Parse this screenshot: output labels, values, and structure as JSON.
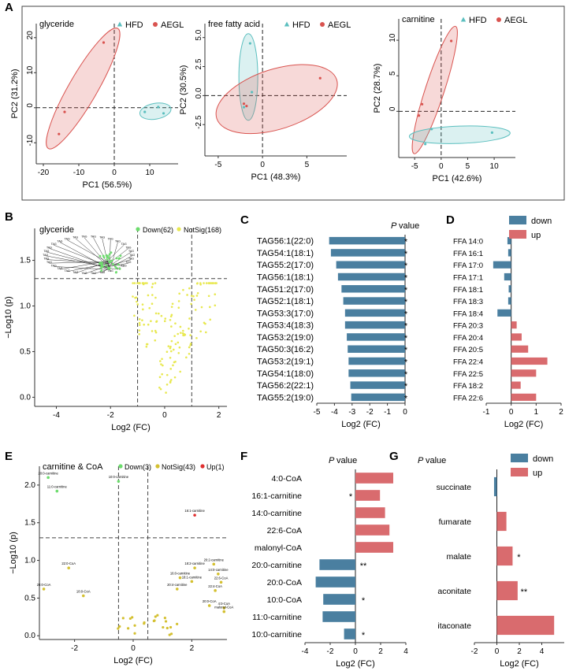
{
  "colors": {
    "hfd": "#5bbfbf",
    "aegl": "#d9534f",
    "down_green": "#6ddc6d",
    "notsig": "#e8e850",
    "bar_down": "#4a7fa0",
    "bar_up": "#d96b6e",
    "sig_red": "#e03030",
    "notsig2": "#d4c030"
  },
  "panels": {
    "A": "A",
    "B": "B",
    "C": "C",
    "D": "D",
    "E": "E",
    "F": "F",
    "G": "G"
  },
  "chart_data": [
    {
      "id": "A1",
      "type": "scatter",
      "title": "glyceride",
      "xlabel": "PC1 (56.5%)",
      "ylabel": "PC2 (31.2%)",
      "xlim": [
        -22,
        18
      ],
      "ylim": [
        -16,
        24
      ],
      "xticks": [
        -20,
        -10,
        0,
        10
      ],
      "yticks": [
        -10,
        0,
        10,
        20
      ],
      "legend": [
        "HFD",
        "AEGL"
      ],
      "series": [
        {
          "name": "HFD",
          "points": [
            [
              8.6,
              -1.2
            ],
            [
              12.4,
              0.2
            ],
            [
              13.9,
              -1.6
            ]
          ]
        },
        {
          "name": "AEGL",
          "points": [
            [
              -3,
              18.6
            ],
            [
              -14,
              -1.2
            ],
            [
              -15.6,
              -7.5
            ]
          ]
        }
      ]
    },
    {
      "id": "A2",
      "type": "scatter",
      "title": "free fatty acid",
      "xlabel": "PC1 (48.3%)",
      "ylabel": "PC2 (30.5%)",
      "xlim": [
        -6.5,
        9.5
      ],
      "ylim": [
        -5.2,
        6.2
      ],
      "xticks": [
        -5,
        0,
        5
      ],
      "yticks": [
        -2.5,
        0.0,
        2.5,
        5.0
      ],
      "legend": [
        "HFD",
        "AEGL"
      ],
      "series": [
        {
          "name": "HFD",
          "points": [
            [
              -1.4,
              4.5
            ],
            [
              -2.1,
              -1.0
            ],
            [
              -1.2,
              0.3
            ]
          ]
        },
        {
          "name": "AEGL",
          "points": [
            [
              6.5,
              1.5
            ],
            [
              -2.1,
              -0.7
            ],
            [
              -1.8,
              -0.9
            ]
          ]
        }
      ]
    },
    {
      "id": "A3",
      "type": "scatter",
      "title": "carnitine",
      "xlabel": "PC1 (42.6%)",
      "ylabel": "PC2 (28.7%)",
      "xlim": [
        -8,
        14
      ],
      "ylim": [
        -6.5,
        13
      ],
      "xticks": [
        -5,
        0,
        5,
        10
      ],
      "yticks": [
        0,
        5,
        10
      ],
      "legend": [
        "HFD",
        "AEGL"
      ],
      "series": [
        {
          "name": "HFD",
          "points": [
            [
              -1.8,
              -2.5
            ],
            [
              -3,
              -4.6
            ],
            [
              9.6,
              -3.0
            ]
          ]
        },
        {
          "name": "AEGL",
          "points": [
            [
              1.9,
              9.9
            ],
            [
              -3.6,
              1.0
            ],
            [
              -4.2,
              -0.6
            ]
          ]
        }
      ]
    },
    {
      "id": "B",
      "type": "scatter",
      "title": "glyceride",
      "xlabel": "Log2 (FC)",
      "ylabel": "−Log10 (p)",
      "xlim": [
        -4.8,
        2.3
      ],
      "ylim": [
        -0.1,
        1.85
      ],
      "xticks": [
        -4,
        -2,
        0,
        2
      ],
      "yticks": [
        0.0,
        0.5,
        1.0,
        1.5
      ],
      "legend": [
        "Down(62)",
        "NotSig(168)"
      ]
    },
    {
      "id": "C",
      "type": "bar",
      "title": "P value",
      "xlabel": "Log2 (FC)",
      "xlim": [
        -5,
        0
      ],
      "xticks": [
        -5,
        -4,
        -3,
        -2,
        -1,
        0
      ],
      "categories": [
        "TAG56:1(22:0)",
        "TAG54:1(18:1)",
        "TAG55:2(17:0)",
        "TAG56:1(18:1)",
        "TAG51:2(17:0)",
        "TAG52:1(18:1)",
        "TAG53:3(17:0)",
        "TAG53:4(18:3)",
        "TAG53:2(19:0)",
        "TAG50:3(16:2)",
        "TAG53:2(19:1)",
        "TAG54:1(18:0)",
        "TAG56:2(22:1)",
        "TAG55:2(19:0)"
      ],
      "values": [
        -4.3,
        -4.2,
        -3.9,
        -3.8,
        -3.6,
        -3.5,
        -3.4,
        -3.4,
        -3.3,
        -3.25,
        -3.2,
        -3.2,
        -3.1,
        -3.05
      ],
      "significance": [
        "*",
        "*",
        "*",
        "*",
        "*",
        "*",
        "*",
        "*",
        "*",
        "*",
        "*",
        "*",
        "*",
        "*"
      ]
    },
    {
      "id": "D",
      "type": "bar",
      "xlabel": "Log2 (FC)",
      "xlim": [
        -1.0,
        2.0
      ],
      "xticks": [
        -1.0,
        0.0,
        1.0,
        2.0
      ],
      "legend": [
        "down",
        "up"
      ],
      "categories": [
        "FFA 14:0",
        "FFA 16:1",
        "FFA 17:0",
        "FFA 17:1",
        "FFA 18:1",
        "FFA 18:3",
        "FFA 18:4",
        "FFA 20:3",
        "FFA 20:4",
        "FFA 20:5",
        "FFA 22:4",
        "FFA 22:5",
        "FFA 18:2",
        "FFA 22:6"
      ],
      "values": [
        -0.15,
        -0.12,
        -0.72,
        -0.28,
        -0.1,
        -0.12,
        -0.55,
        0.22,
        0.42,
        0.68,
        1.45,
        1.0,
        0.38,
        1.0
      ]
    },
    {
      "id": "E",
      "type": "scatter",
      "title": "carnitine & CoA",
      "xlabel": "Log2 (FC)",
      "ylabel": "−Log10 (p)",
      "xlim": [
        -3.2,
        3.2
      ],
      "ylim": [
        -0.05,
        2.25
      ],
      "xticks": [
        -2,
        0,
        2
      ],
      "yticks": [
        0.0,
        0.5,
        1.0,
        1.5,
        2.0
      ],
      "legend": [
        "Down(3)",
        "NotSig(43)",
        "Up(1)"
      ],
      "labeled_points": [
        {
          "label": "20:0-carnitine",
          "x": -2.9,
          "y": 2.1,
          "group": "Down"
        },
        {
          "label": "10:0-carnitine",
          "x": -0.5,
          "y": 2.05,
          "group": "Down"
        },
        {
          "label": "11:0-carnitine",
          "x": -2.6,
          "y": 1.92,
          "group": "Down"
        },
        {
          "label": "16:1-carnitine",
          "x": 2.1,
          "y": 1.6,
          "group": "Up"
        },
        {
          "label": "22:0-CoA",
          "x": -2.2,
          "y": 0.9,
          "group": "NotSig"
        },
        {
          "label": "20:2-carnitine",
          "x": 2.75,
          "y": 0.95,
          "group": "NotSig"
        },
        {
          "label": "18:2-carnitine",
          "x": 2.1,
          "y": 0.9,
          "group": "NotSig"
        },
        {
          "label": "28:0-CoA",
          "x": -3.05,
          "y": 0.62,
          "group": "NotSig"
        },
        {
          "label": "18:0-CoA",
          "x": -1.7,
          "y": 0.53,
          "group": "NotSig"
        },
        {
          "label": "14:0-carnitine",
          "x": 2.9,
          "y": 0.82,
          "group": "NotSig"
        },
        {
          "label": "16:0-carnitine",
          "x": 1.6,
          "y": 0.77,
          "group": "NotSig"
        },
        {
          "label": "22:6-CoA",
          "x": 3.0,
          "y": 0.71,
          "group": "NotSig"
        },
        {
          "label": "18:1-carnitine",
          "x": 2.0,
          "y": 0.72,
          "group": "NotSig"
        },
        {
          "label": "20:4-carnitine",
          "x": 1.5,
          "y": 0.62,
          "group": "NotSig"
        },
        {
          "label": "22:4-CoA",
          "x": 2.8,
          "y": 0.6,
          "group": "NotSig"
        },
        {
          "label": "4:0-CoA",
          "x": 3.1,
          "y": 0.37,
          "group": "NotSig"
        },
        {
          "label": "malonyl-CoA",
          "x": 3.1,
          "y": 0.32,
          "group": "NotSig"
        },
        {
          "label": "20:0-CoA",
          "x": 2.6,
          "y": 0.4,
          "group": "NotSig"
        }
      ]
    },
    {
      "id": "F",
      "type": "bar",
      "title": "P value",
      "xlabel": "Log2 (FC)",
      "xlim": [
        -4,
        4
      ],
      "xticks": [
        -4,
        -2,
        0,
        2,
        4
      ],
      "categories": [
        "4:0-CoA",
        "16:1-carnitine",
        "14:0-carnitine",
        "22:6-CoA",
        "malonyl-CoA",
        "20:0-carnitine",
        "20:0-CoA",
        "10:0-CoA",
        "11:0-carnitine",
        "10:0-carnitine"
      ],
      "values": [
        3.0,
        1.95,
        2.35,
        2.7,
        3.0,
        -2.85,
        -3.15,
        -2.55,
        -2.6,
        -0.9
      ],
      "significance": [
        "",
        "*",
        "",
        "",
        "",
        "**",
        "",
        "*",
        "",
        "*"
      ]
    },
    {
      "id": "G",
      "type": "bar",
      "title": "P value",
      "xlabel": "Log2 (FC)",
      "xlim": [
        -2,
        6
      ],
      "xticks": [
        -2,
        0,
        2,
        4
      ],
      "legend": [
        "down",
        "up"
      ],
      "categories": [
        "succinate",
        "fumarate",
        "malate",
        "aconitate",
        "itaconate"
      ],
      "values": [
        -0.25,
        0.85,
        1.4,
        1.85,
        5.1
      ],
      "significance": [
        "",
        "",
        "*",
        "**",
        ""
      ]
    }
  ]
}
